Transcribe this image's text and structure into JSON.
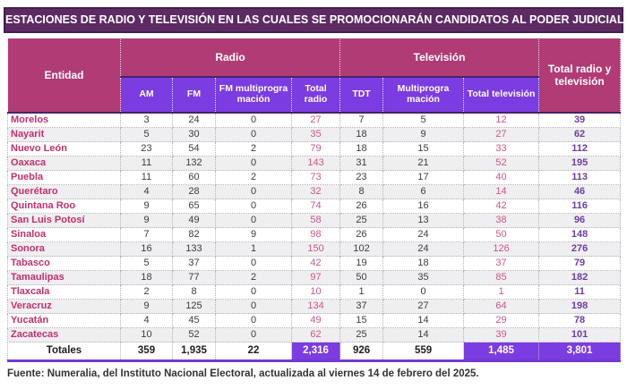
{
  "title": "ESTACIONES DE RADIO Y TELEVISIÓN EN LAS CUALES SE PROMOCIONARÁN CANDIDATOS AL PODER JUDICIAL",
  "header": {
    "entity": "Entidad",
    "groups": [
      "Radio",
      "Televisión"
    ],
    "total": "Total radio y televisión",
    "subs": [
      "AM",
      "FM",
      "FM multiprogra mación",
      "Total radio",
      "TDT",
      "Multiprogra mación",
      "Total televisión"
    ]
  },
  "source": "Fuente: Numeralia, del Instituto Nacional Electoral, actualizada al viernes 14 de febrero del 2025.",
  "colors": {
    "title_bg": "#5d2a64",
    "group_header_bg": "#b13b74",
    "sub_header_bg": "#7b3ce1",
    "entity_text": "#c2306e",
    "subtotal_text": "#c9568c",
    "grand_total_text": "#6d3da3",
    "alt_row_bg": "#efeef0",
    "totals_highlight_bg": "#7b3ce1"
  },
  "chart_data": {
    "type": "table",
    "title": "ESTACIONES DE RADIO Y TELEVISIÓN EN LAS CUALES SE PROMOCIONARÁN CANDIDATOS AL PODER JUDICIAL",
    "columns": [
      "Entidad",
      "AM",
      "FM",
      "FM multiprogramación",
      "Total radio",
      "TDT",
      "Multiprogramación",
      "Total televisión",
      "Total radio y televisión"
    ],
    "column_groups": [
      {
        "label": "Radio",
        "columns": [
          "AM",
          "FM",
          "FM multiprogramación",
          "Total radio"
        ]
      },
      {
        "label": "Televisión",
        "columns": [
          "TDT",
          "Multiprogramación",
          "Total televisión"
        ]
      }
    ],
    "rows": [
      [
        "Morelos",
        3,
        24,
        0,
        27,
        7,
        5,
        12,
        39
      ],
      [
        "Nayarit",
        5,
        30,
        0,
        35,
        18,
        9,
        27,
        62
      ],
      [
        "Nuevo León",
        23,
        54,
        2,
        79,
        18,
        15,
        33,
        112
      ],
      [
        "Oaxaca",
        11,
        132,
        0,
        143,
        31,
        21,
        52,
        195
      ],
      [
        "Puebla",
        11,
        60,
        2,
        73,
        23,
        17,
        40,
        113
      ],
      [
        "Querétaro",
        4,
        28,
        0,
        32,
        8,
        6,
        14,
        46
      ],
      [
        "Quintana Roo",
        9,
        65,
        0,
        74,
        26,
        16,
        42,
        116
      ],
      [
        "San Luis Potosí",
        9,
        49,
        0,
        58,
        25,
        13,
        38,
        96
      ],
      [
        "Sinaloa",
        7,
        82,
        9,
        98,
        26,
        24,
        50,
        148
      ],
      [
        "Sonora",
        16,
        133,
        1,
        150,
        102,
        24,
        126,
        276
      ],
      [
        "Tabasco",
        5,
        37,
        0,
        42,
        19,
        18,
        37,
        79
      ],
      [
        "Tamaulipas",
        18,
        77,
        2,
        97,
        50,
        35,
        85,
        182
      ],
      [
        "Tlaxcala",
        2,
        8,
        0,
        10,
        1,
        0,
        1,
        11
      ],
      [
        "Veracruz",
        9,
        125,
        0,
        134,
        37,
        27,
        64,
        198
      ],
      [
        "Yucatán",
        4,
        45,
        0,
        49,
        15,
        14,
        29,
        78
      ],
      [
        "Zacatecas",
        10,
        52,
        0,
        62,
        25,
        14,
        39,
        101
      ]
    ],
    "totals": [
      "Totales",
      359,
      1935,
      22,
      2316,
      926,
      559,
      1485,
      3801
    ]
  }
}
